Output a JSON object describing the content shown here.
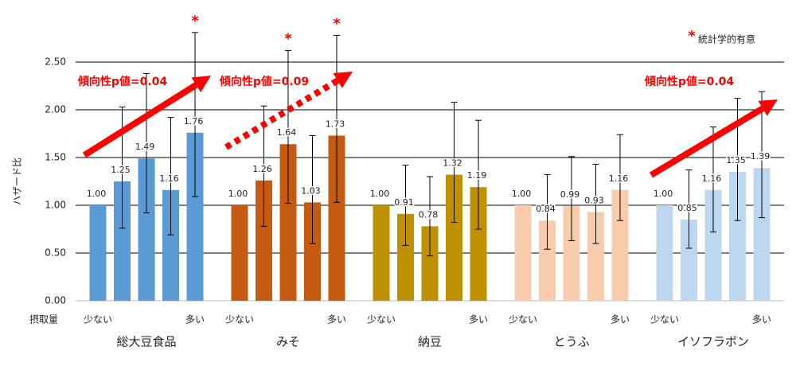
{
  "chart_data": {
    "type": "bar",
    "y_label": "ハザード比",
    "x_label": "摂取量",
    "quantile_labels": [
      "少ない",
      null,
      null,
      null,
      "多い"
    ],
    "ylim": [
      0,
      3.0
    ],
    "yticks": [
      {
        "value": 0,
        "label": "0.00"
      },
      {
        "value": 0.5,
        "label": "0.50"
      },
      {
        "value": 1.0,
        "label": "1.00"
      },
      {
        "value": 1.5,
        "label": "1.50"
      },
      {
        "value": 2.0,
        "label": "2.00"
      },
      {
        "value": 2.5,
        "label": "2.50"
      }
    ],
    "grid": true,
    "significance_mark": "*",
    "significance_legend": "統計学的有意",
    "series": [
      {
        "name": "総大豆食品",
        "color": "#5b9bd5",
        "values": [
          1.0,
          1.25,
          1.49,
          1.16,
          1.76
        ],
        "value_labels": [
          "1.00",
          "1.25",
          "1.49",
          "1.16",
          "1.76"
        ],
        "ci_low": [
          null,
          0.76,
          0.92,
          0.69,
          1.09
        ],
        "ci_high": [
          null,
          2.03,
          2.38,
          1.92,
          2.81
        ],
        "significant": [
          false,
          false,
          false,
          false,
          true
        ],
        "trend_label": "傾向性p値=0.04",
        "trend_style": "solid"
      },
      {
        "name": "みそ",
        "color": "#c55a11",
        "values": [
          1.0,
          1.26,
          1.64,
          1.03,
          1.73
        ],
        "value_labels": [
          "1.00",
          "1.26",
          "1.64",
          "1.03",
          "1.73"
        ],
        "ci_low": [
          null,
          0.78,
          1.02,
          0.6,
          1.03
        ],
        "ci_high": [
          null,
          2.04,
          2.62,
          1.73,
          2.78
        ],
        "significant": [
          false,
          false,
          true,
          false,
          true
        ],
        "trend_label": "傾向性p値=0.09",
        "trend_style": "dotted"
      },
      {
        "name": "納豆",
        "color": "#bf9000",
        "values": [
          1.0,
          0.91,
          0.78,
          1.32,
          1.19
        ],
        "value_labels": [
          "1.00",
          "0.91",
          "0.78",
          "1.32",
          "1.19"
        ],
        "ci_low": [
          null,
          0.58,
          0.47,
          0.82,
          0.75
        ],
        "ci_high": [
          null,
          1.42,
          1.3,
          2.08,
          1.89
        ],
        "significant": [
          false,
          false,
          false,
          false,
          false
        ]
      },
      {
        "name": "とうふ",
        "color": "#f8cbad",
        "values": [
          1.0,
          0.84,
          0.99,
          0.93,
          1.16
        ],
        "value_labels": [
          "1.00",
          "0.84",
          "0.99",
          "0.93",
          "1.16"
        ],
        "ci_low": [
          null,
          0.54,
          0.63,
          0.6,
          0.84
        ],
        "ci_high": [
          null,
          1.32,
          1.51,
          1.43,
          1.74
        ],
        "significant": [
          false,
          false,
          false,
          false,
          false
        ]
      },
      {
        "name": "イソフラボン",
        "color": "#bdd7ee",
        "values": [
          1.0,
          0.85,
          1.16,
          1.35,
          1.39
        ],
        "value_labels": [
          "1.00",
          "0.85",
          "1.16",
          "1.35",
          "1.39"
        ],
        "ci_low": [
          null,
          0.55,
          0.72,
          0.84,
          0.87
        ],
        "ci_high": [
          null,
          1.37,
          1.82,
          2.12,
          2.19
        ],
        "significant": [
          false,
          false,
          false,
          false,
          false
        ],
        "trend_label": "傾向性p値=0.04",
        "trend_style": "solid"
      }
    ]
  }
}
